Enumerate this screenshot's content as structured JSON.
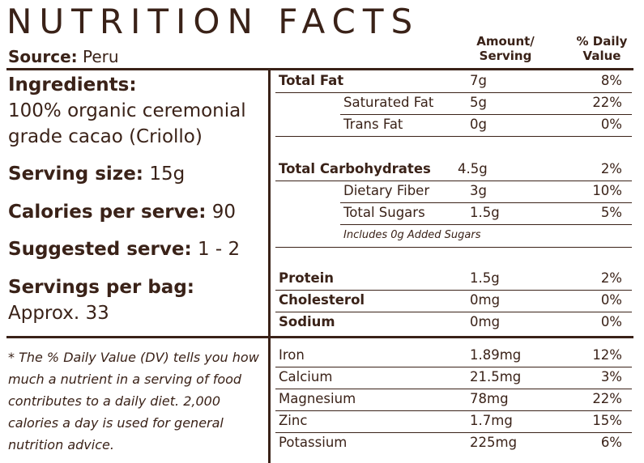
{
  "title": "NUTRITION FACTS",
  "source": {
    "label": "Source:",
    "value": "Peru"
  },
  "headers": {
    "amount": [
      "Amount/",
      "Serving"
    ],
    "dv": [
      "% Daily",
      "Value"
    ]
  },
  "left": {
    "ingredients_label": "Ingredients:",
    "ingredients_lines": [
      "100% organic ceremonial",
      "grade cacao (Criollo)"
    ],
    "serving_size": {
      "label": "Serving size:",
      "value": "15g"
    },
    "calories": {
      "label": "Calories per serve:",
      "value": "90"
    },
    "suggested": {
      "label": "Suggested serve:",
      "value": "1 - 2"
    },
    "servings_label": "Servings per bag:",
    "servings_value": "Approx. 33",
    "footnote": "* The % Daily Value (DV) tells you how much a nutrient in a serving of food contributes to a daily diet. 2,000 calories a day is used for general nutrition advice."
  },
  "rows": [
    {
      "name": "Total Fat",
      "amount": "7g",
      "dv": "8%"
    },
    {
      "name": "Saturated Fat",
      "amount": "5g",
      "dv": "22%"
    },
    {
      "name": "Trans Fat",
      "amount": "0g",
      "dv": "0%"
    },
    {
      "name": "Total Carbohydrates",
      "amount": "4.5g",
      "dv": "2%"
    },
    {
      "name": "Dietary Fiber",
      "amount": "3g",
      "dv": "10%"
    },
    {
      "name": "Total Sugars",
      "amount": "1.5g",
      "dv": "5%"
    },
    {
      "name": "Protein",
      "amount": "1.5g",
      "dv": "2%"
    },
    {
      "name": "Cholesterol",
      "amount": "0mg",
      "dv": "0%"
    },
    {
      "name": "Sodium",
      "amount": "0mg",
      "dv": "0%"
    },
    {
      "name": "Iron",
      "amount": "1.89mg",
      "dv": "12%"
    },
    {
      "name": "Calcium",
      "amount": "21.5mg",
      "dv": "3%"
    },
    {
      "name": "Magnesium",
      "amount": "78mg",
      "dv": "22%"
    },
    {
      "name": "Zinc",
      "amount": "1.7mg",
      "dv": "15%"
    },
    {
      "name": "Potassium",
      "amount": "225mg",
      "dv": "6%"
    }
  ],
  "added_sugars_note": "Includes 0g Added Sugars"
}
